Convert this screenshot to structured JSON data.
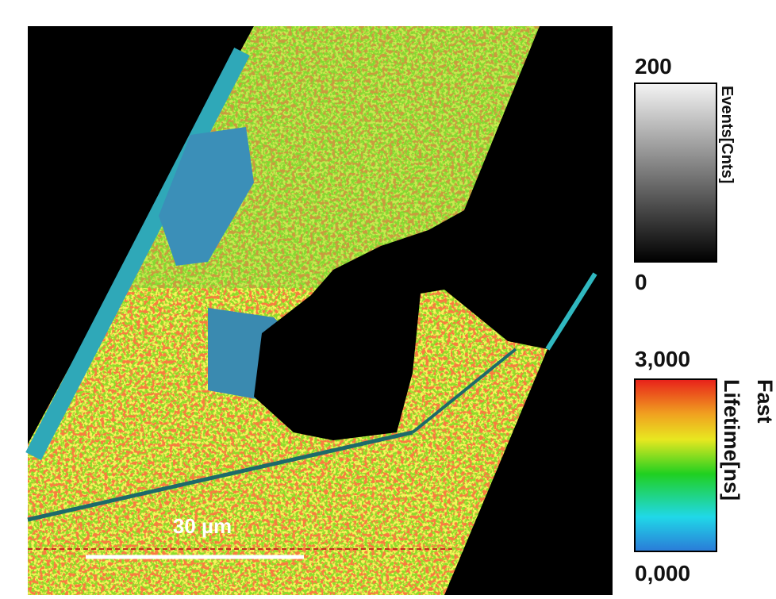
{
  "scale_bar": {
    "label": "30 µm"
  },
  "intensity_bar": {
    "max": "200",
    "min": "0",
    "label": "Events[Cnts]"
  },
  "lifetime_bar": {
    "max": "3,000",
    "min": "0,000",
    "label_line1": "Fast",
    "label_line2": "Lifetime[ns]"
  }
}
